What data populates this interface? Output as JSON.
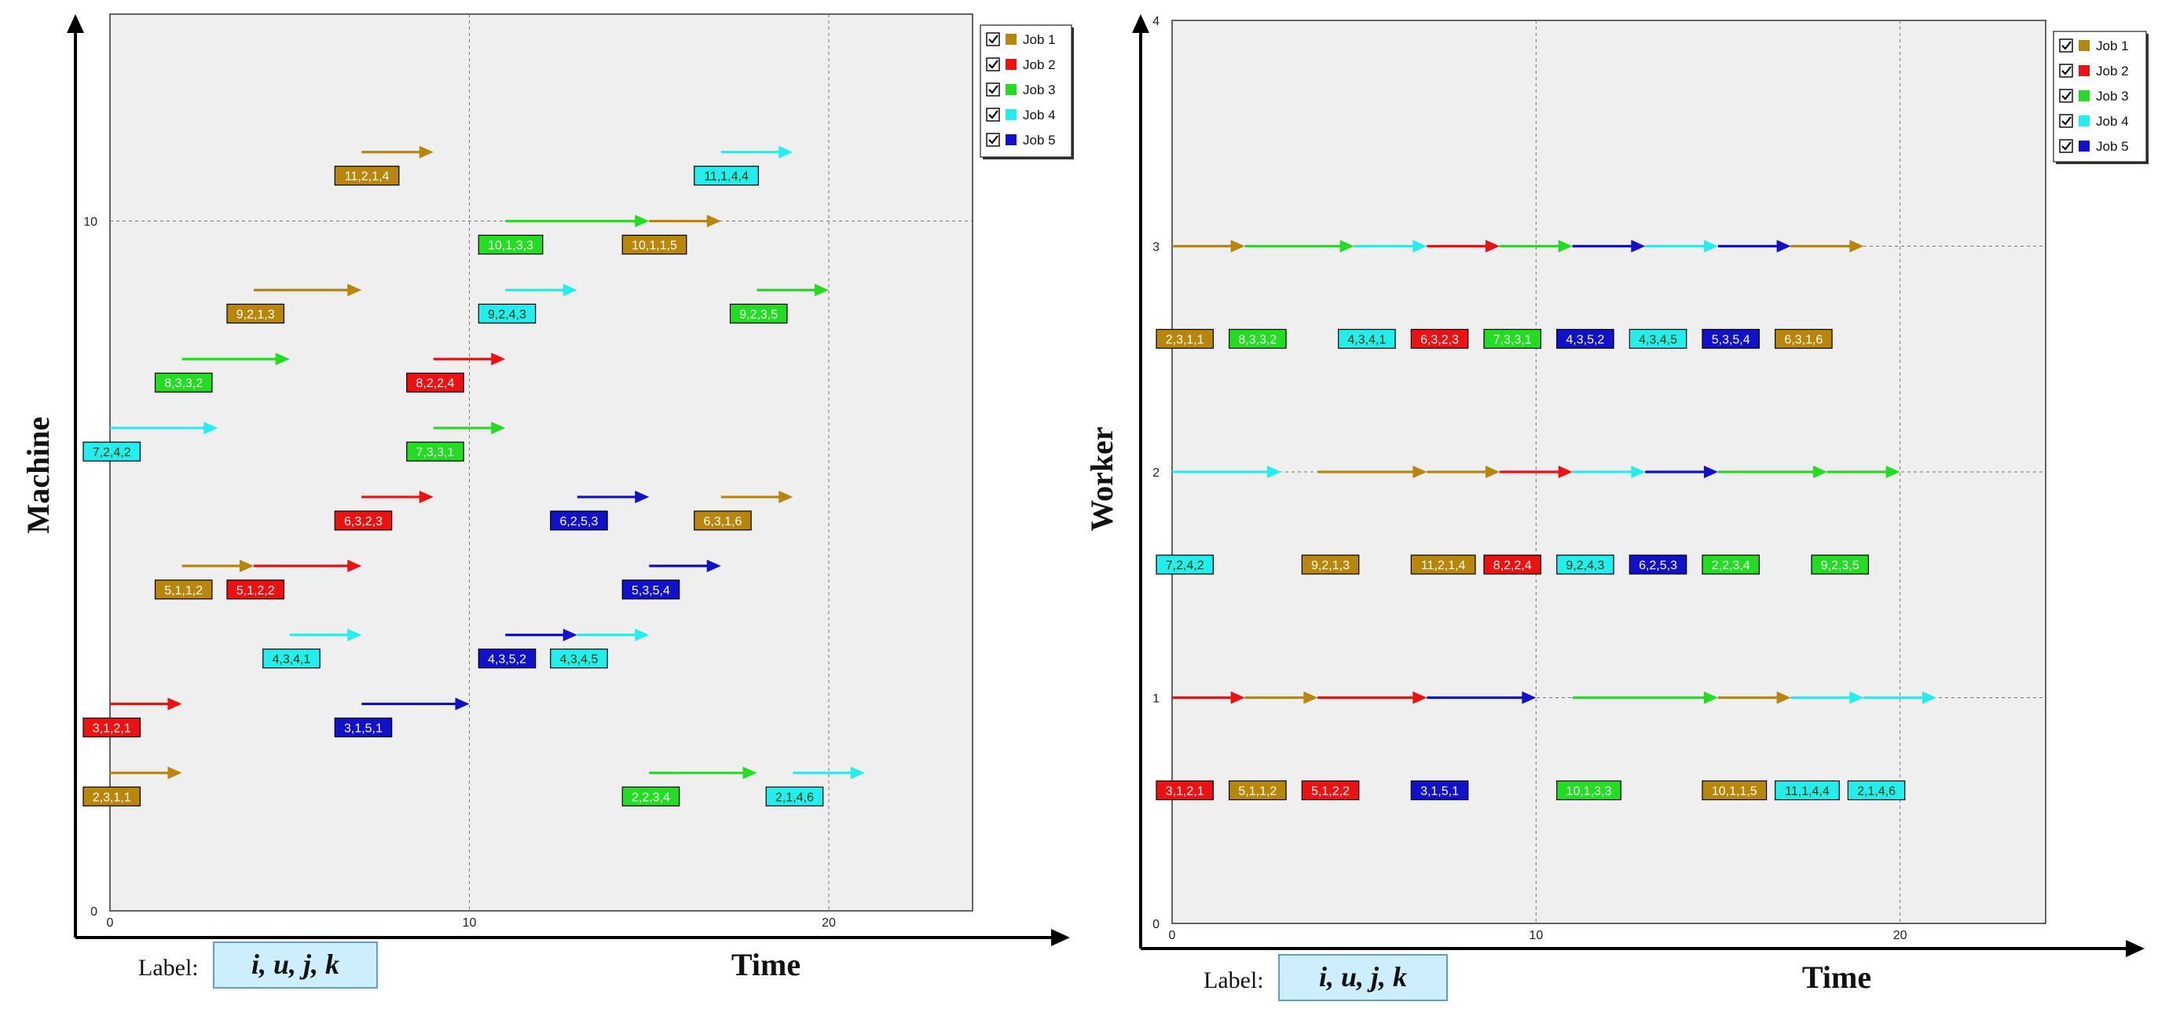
{
  "chart_data": [
    {
      "type": "gantt",
      "ylabel": "Machine",
      "xlabel": "Time",
      "xticks": [
        0,
        10,
        20
      ],
      "yticks": [
        0,
        10
      ],
      "xlim": [
        0,
        24
      ],
      "ylim": [
        0,
        13
      ],
      "grid": true,
      "legend": {
        "position": "top-right",
        "checked": true
      },
      "series": [
        {
          "name": "Job 1",
          "color": "#B8860B"
        },
        {
          "name": "Job 2",
          "color": "#EE1111"
        },
        {
          "name": "Job 3",
          "color": "#22DD22"
        },
        {
          "name": "Job 4",
          "color": "#22EEEE"
        },
        {
          "name": "Job 5",
          "color": "#1111CC"
        }
      ],
      "tasks": [
        {
          "label": "2,3,1,1",
          "job": 1,
          "lane": 2,
          "start": 0,
          "end": 2
        },
        {
          "label": "3,1,2,1",
          "job": 2,
          "lane": 3,
          "start": 0,
          "end": 2
        },
        {
          "label": "3,1,5,1",
          "job": 5,
          "lane": 3,
          "start": 7,
          "end": 10
        },
        {
          "label": "2,2,3,4",
          "job": 3,
          "lane": 2,
          "start": 15,
          "end": 18
        },
        {
          "label": "2,1,4,6",
          "job": 4,
          "lane": 2,
          "start": 19,
          "end": 21
        },
        {
          "label": "4,3,4,1",
          "job": 4,
          "lane": 4,
          "start": 5,
          "end": 7
        },
        {
          "label": "4,3,5,2",
          "job": 5,
          "lane": 4,
          "start": 11,
          "end": 13
        },
        {
          "label": "4,3,4,5",
          "job": 4,
          "lane": 4,
          "start": 13,
          "end": 15
        },
        {
          "label": "5,1,1,2",
          "job": 1,
          "lane": 5,
          "start": 2,
          "end": 4
        },
        {
          "label": "5,1,2,2",
          "job": 2,
          "lane": 5,
          "start": 4,
          "end": 7
        },
        {
          "label": "5,3,5,4",
          "job": 5,
          "lane": 5,
          "start": 15,
          "end": 17
        },
        {
          "label": "6,3,2,3",
          "job": 2,
          "lane": 6,
          "start": 7,
          "end": 9
        },
        {
          "label": "6,2,5,3",
          "job": 5,
          "lane": 6,
          "start": 13,
          "end": 15
        },
        {
          "label": "6,3,1,6",
          "job": 1,
          "lane": 6,
          "start": 17,
          "end": 19
        },
        {
          "label": "7,2,4,2",
          "job": 4,
          "lane": 7,
          "start": 0,
          "end": 3
        },
        {
          "label": "7,3,3,1",
          "job": 3,
          "lane": 7,
          "start": 9,
          "end": 11
        },
        {
          "label": "8,3,3,2",
          "job": 3,
          "lane": 8,
          "start": 2,
          "end": 5
        },
        {
          "label": "8,2,2,4",
          "job": 2,
          "lane": 8,
          "start": 9,
          "end": 11
        },
        {
          "label": "9,2,1,3",
          "job": 1,
          "lane": 9,
          "start": 4,
          "end": 7
        },
        {
          "label": "9,2,4,3",
          "job": 4,
          "lane": 9,
          "start": 11,
          "end": 13
        },
        {
          "label": "9,2,3,5",
          "job": 3,
          "lane": 9,
          "start": 18,
          "end": 20
        },
        {
          "label": "10,1,3,3",
          "job": 3,
          "lane": 10,
          "start": 11,
          "end": 15
        },
        {
          "label": "10,1,1,5",
          "job": 1,
          "lane": 10,
          "start": 15,
          "end": 17
        },
        {
          "label": "11,2,1,4",
          "job": 1,
          "lane": 11,
          "start": 7,
          "end": 9
        },
        {
          "label": "11,1,4,4",
          "job": 4,
          "lane": 11,
          "start": 17,
          "end": 19
        }
      ]
    },
    {
      "type": "gantt",
      "ylabel": "Worker",
      "xlabel": "Time",
      "xticks": [
        0,
        10,
        20
      ],
      "yticks": [
        0,
        1,
        2,
        3,
        4
      ],
      "xlim": [
        0,
        24
      ],
      "ylim": [
        0,
        4
      ],
      "grid": true,
      "legend": {
        "position": "top-right",
        "checked": true
      },
      "series": [
        {
          "name": "Job 1",
          "color": "#B8860B"
        },
        {
          "name": "Job 2",
          "color": "#EE1111"
        },
        {
          "name": "Job 3",
          "color": "#22DD22"
        },
        {
          "name": "Job 4",
          "color": "#22EEEE"
        },
        {
          "name": "Job 5",
          "color": "#1111CC"
        }
      ],
      "tasks": [
        {
          "label": "2,3,1,1",
          "job": 1,
          "lane": 3,
          "start": 0,
          "end": 2
        },
        {
          "label": "8,3,3,2",
          "job": 3,
          "lane": 3,
          "start": 2,
          "end": 5
        },
        {
          "label": "4,3,4,1",
          "job": 4,
          "lane": 3,
          "start": 5,
          "end": 7
        },
        {
          "label": "6,3,2,3",
          "job": 2,
          "lane": 3,
          "start": 7,
          "end": 9
        },
        {
          "label": "7,3,3,1",
          "job": 3,
          "lane": 3,
          "start": 9,
          "end": 11
        },
        {
          "label": "4,3,5,2",
          "job": 5,
          "lane": 3,
          "start": 11,
          "end": 13
        },
        {
          "label": "4,3,4,5",
          "job": 4,
          "lane": 3,
          "start": 13,
          "end": 15
        },
        {
          "label": "5,3,5,4",
          "job": 5,
          "lane": 3,
          "start": 15,
          "end": 17
        },
        {
          "label": "6,3,1,6",
          "job": 1,
          "lane": 3,
          "start": 17,
          "end": 19
        },
        {
          "label": "7,2,4,2",
          "job": 4,
          "lane": 2,
          "start": 0,
          "end": 3
        },
        {
          "label": "9,2,1,3",
          "job": 1,
          "lane": 2,
          "start": 4,
          "end": 7
        },
        {
          "label": "11,2,1,4",
          "job": 1,
          "lane": 2,
          "start": 7,
          "end": 9
        },
        {
          "label": "8,2,2,4",
          "job": 2,
          "lane": 2,
          "start": 9,
          "end": 11
        },
        {
          "label": "9,2,4,3",
          "job": 4,
          "lane": 2,
          "start": 11,
          "end": 13
        },
        {
          "label": "6,2,5,3",
          "job": 5,
          "lane": 2,
          "start": 13,
          "end": 15
        },
        {
          "label": "2,2,3,4",
          "job": 3,
          "lane": 2,
          "start": 15,
          "end": 18
        },
        {
          "label": "9,2,3,5",
          "job": 3,
          "lane": 2,
          "start": 18,
          "end": 20
        },
        {
          "label": "3,1,2,1",
          "job": 2,
          "lane": 1,
          "start": 0,
          "end": 2
        },
        {
          "label": "5,1,1,2",
          "job": 1,
          "lane": 1,
          "start": 2,
          "end": 4
        },
        {
          "label": "5,1,2,2",
          "job": 2,
          "lane": 1,
          "start": 4,
          "end": 7
        },
        {
          "label": "3,1,5,1",
          "job": 5,
          "lane": 1,
          "start": 7,
          "end": 10
        },
        {
          "label": "10,1,3,3",
          "job": 3,
          "lane": 1,
          "start": 11,
          "end": 15
        },
        {
          "label": "10,1,1,5",
          "job": 1,
          "lane": 1,
          "start": 15,
          "end": 17
        },
        {
          "label": "11,1,4,4",
          "job": 4,
          "lane": 1,
          "start": 17,
          "end": 19
        },
        {
          "label": "2,1,4,6",
          "job": 4,
          "lane": 1,
          "start": 19,
          "end": 21
        }
      ]
    }
  ],
  "caption": {
    "label": "Label:",
    "formula": "i, u, j, k"
  }
}
